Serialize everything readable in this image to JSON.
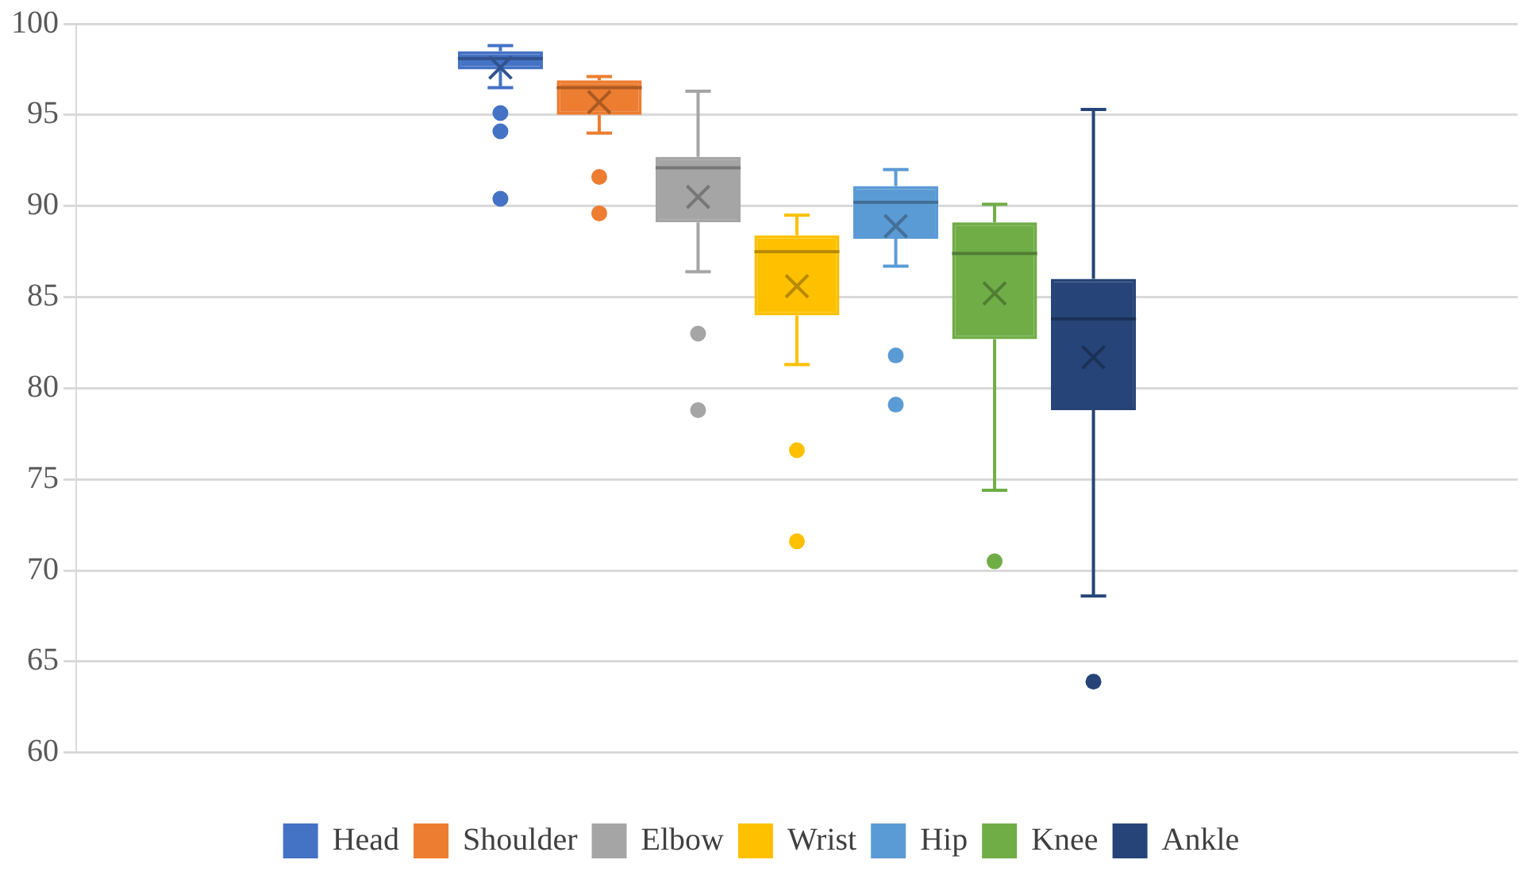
{
  "chart_data": {
    "type": "box",
    "categories": [
      null
    ],
    "series": [
      {
        "name": "Head",
        "color": "#4472c4",
        "boxes": [
          {
            "low": 96.5,
            "q1": 97.5,
            "median": 98.1,
            "q3": 98.5,
            "high": 98.8,
            "mean": 97.6,
            "outliers": [
              95.1,
              94.1,
              90.4
            ]
          }
        ]
      },
      {
        "name": "Shoulder",
        "color": "#ed7d31",
        "boxes": [
          {
            "low": 94.0,
            "q1": 95.0,
            "median": 96.5,
            "q3": 96.9,
            "high": 97.1,
            "mean": 95.7,
            "outliers": [
              91.6,
              89.6
            ]
          }
        ]
      },
      {
        "name": "Elbow",
        "color": "#a5a5a5",
        "boxes": [
          {
            "low": 86.4,
            "q1": 89.1,
            "median": 92.1,
            "q3": 92.7,
            "high": 96.3,
            "mean": 90.5,
            "outliers": [
              83.0,
              78.8
            ]
          }
        ]
      },
      {
        "name": "Wrist",
        "color": "#ffc000",
        "boxes": [
          {
            "low": 81.3,
            "q1": 84.0,
            "median": 87.5,
            "q3": 88.4,
            "high": 89.5,
            "mean": 85.6,
            "outliers": [
              76.6,
              71.6
            ]
          }
        ]
      },
      {
        "name": "Hip",
        "color": "#5b9bd5",
        "boxes": [
          {
            "low": 86.7,
            "q1": 88.2,
            "median": 90.2,
            "q3": 91.1,
            "high": 92.0,
            "mean": 88.9,
            "outliers": [
              81.8,
              79.1
            ]
          }
        ]
      },
      {
        "name": "Knee",
        "color": "#70ad47",
        "boxes": [
          {
            "low": 74.4,
            "q1": 82.7,
            "median": 87.4,
            "q3": 89.1,
            "high": 90.1,
            "mean": 85.2,
            "outliers": [
              70.5
            ]
          }
        ]
      },
      {
        "name": "Ankle",
        "color": "#264478",
        "boxes": [
          {
            "low": 68.6,
            "q1": 78.8,
            "median": 83.8,
            "q3": 86.0,
            "high": 95.3,
            "mean": 81.7,
            "outliers": [
              63.9
            ]
          }
        ]
      }
    ],
    "ylim": [
      60,
      100
    ],
    "yticks": [
      60,
      65,
      70,
      75,
      80,
      85,
      90,
      95,
      100
    ],
    "grid": "y",
    "legend": "bottom"
  }
}
